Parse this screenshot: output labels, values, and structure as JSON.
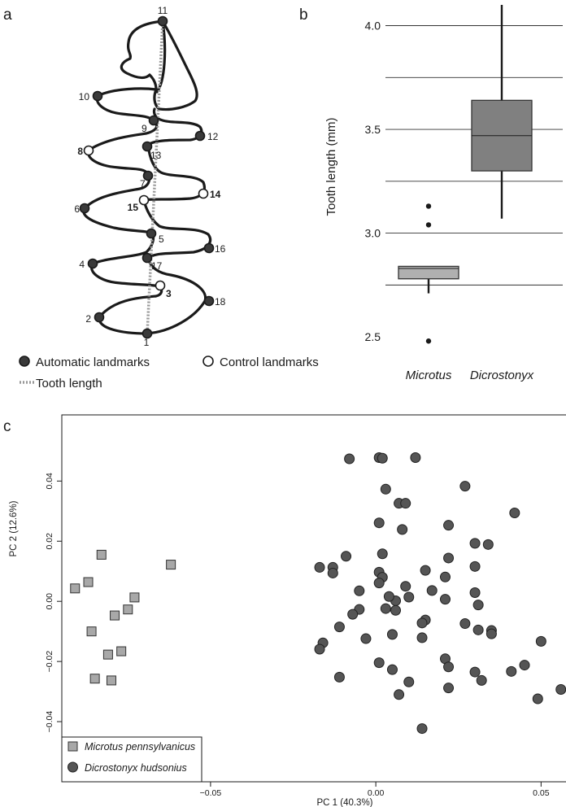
{
  "panels": {
    "a": "a",
    "b": "b",
    "c": "c"
  },
  "panel_a": {
    "landmarks": [
      {
        "id": "1",
        "type": "automatic"
      },
      {
        "id": "2",
        "type": "automatic"
      },
      {
        "id": "3",
        "type": "control"
      },
      {
        "id": "4",
        "type": "automatic"
      },
      {
        "id": "5",
        "type": "automatic"
      },
      {
        "id": "6",
        "type": "automatic"
      },
      {
        "id": "7",
        "type": "automatic"
      },
      {
        "id": "8",
        "type": "control"
      },
      {
        "id": "9",
        "type": "automatic"
      },
      {
        "id": "10",
        "type": "automatic"
      },
      {
        "id": "11",
        "type": "automatic"
      },
      {
        "id": "12",
        "type": "automatic"
      },
      {
        "id": "13",
        "type": "automatic"
      },
      {
        "id": "14",
        "type": "control"
      },
      {
        "id": "15",
        "type": "control"
      },
      {
        "id": "16",
        "type": "automatic"
      },
      {
        "id": "17",
        "type": "automatic"
      },
      {
        "id": "18",
        "type": "automatic"
      }
    ],
    "legend": {
      "automatic": "Automatic landmarks",
      "control": "Control landmarks",
      "tooth_length": "Tooth length"
    },
    "colors": {
      "tooth_outline": "#1a1a1a",
      "automatic_fill": "#3a3a3a",
      "control_fill": "#ffffff",
      "dotted_line": "#999999"
    }
  },
  "chart_data": [
    {
      "type": "box",
      "panel": "b",
      "ylabel": "Tooth length (mm)",
      "ylim": [
        2.43,
        4.1
      ],
      "yticks": [
        2.5,
        3.0,
        3.5,
        4.0
      ],
      "ytick_labels": [
        "2.5",
        "3.0",
        "3.5",
        "4.0"
      ],
      "gridlines": [
        2.75,
        3.0,
        3.25,
        3.5,
        3.75,
        4.0
      ],
      "grid": true,
      "categories": [
        "Microtus",
        "Dicrostonyx"
      ],
      "boxes": [
        {
          "category": "Microtus",
          "q1": 2.78,
          "median": 2.83,
          "q3": 2.84,
          "whisker_low": 2.71,
          "whisker_high": 2.84,
          "outliers": [
            3.13,
            3.04,
            2.48
          ],
          "color": "#b0b0b0"
        },
        {
          "category": "Dicrostonyx",
          "q1": 3.3,
          "median": 3.47,
          "q3": 3.64,
          "whisker_low": 3.07,
          "whisker_high": 4.1,
          "outliers": [],
          "color": "#808080"
        }
      ]
    },
    {
      "type": "scatter",
      "panel": "c",
      "xlabel": "PC  1 (40.3%)",
      "ylabel": "PC  2 (12.6%)",
      "xlim": [
        -0.095,
        0.06
      ],
      "ylim": [
        -0.06,
        0.062
      ],
      "xticks": [
        -0.05,
        0.0,
        0.05
      ],
      "xtick_labels": [
        "−0.05",
        "0.00",
        "0.05"
      ],
      "yticks": [
        -0.04,
        -0.02,
        0.0,
        0.02,
        0.04
      ],
      "ytick_labels": [
        "−0.04",
        "−0.02",
        "0.00",
        "0.02",
        "0.04"
      ],
      "legend_position": "bottom-left",
      "series": [
        {
          "name": "Microtus pennsylvanicus",
          "marker": "square",
          "color": "#a8a8a8",
          "points": [
            [
              -0.083,
              0.0155
            ],
            [
              -0.062,
              0.0122
            ],
            [
              -0.087,
              0.0064
            ],
            [
              -0.091,
              0.0043
            ],
            [
              -0.073,
              0.0013
            ],
            [
              -0.075,
              -0.0027
            ],
            [
              -0.079,
              -0.0047
            ],
            [
              -0.086,
              -0.01
            ],
            [
              -0.077,
              -0.0166
            ],
            [
              -0.081,
              -0.0177
            ],
            [
              -0.085,
              -0.0257
            ],
            [
              -0.08,
              -0.0263
            ]
          ]
        },
        {
          "name": "Dicrostonyx hudsonius",
          "marker": "circle",
          "color": "#555555",
          "points": [
            [
              -0.008,
              0.0474
            ],
            [
              0.001,
              0.0478
            ],
            [
              0.002,
              0.0476
            ],
            [
              0.012,
              0.0478
            ],
            [
              0.003,
              0.0373
            ],
            [
              0.007,
              0.0326
            ],
            [
              0.009,
              0.0326
            ],
            [
              0.027,
              0.0383
            ],
            [
              0.042,
              0.0294
            ],
            [
              0.001,
              0.0261
            ],
            [
              0.008,
              0.0239
            ],
            [
              0.022,
              0.0253
            ],
            [
              -0.017,
              0.0113
            ],
            [
              -0.013,
              0.0113
            ],
            [
              -0.009,
              0.015
            ],
            [
              -0.013,
              0.0094
            ],
            [
              0.002,
              0.0158
            ],
            [
              0.022,
              0.0144
            ],
            [
              0.03,
              0.0193
            ],
            [
              0.034,
              0.0189
            ],
            [
              0.001,
              0.0097
            ],
            [
              0.002,
              0.008
            ],
            [
              0.015,
              0.0103
            ],
            [
              0.021,
              0.0081
            ],
            [
              0.03,
              0.0116
            ],
            [
              -0.005,
              0.0035
            ],
            [
              0.001,
              0.0061
            ],
            [
              0.009,
              0.005
            ],
            [
              0.017,
              0.0036
            ],
            [
              0.006,
              0.0002
            ],
            [
              0.004,
              0.0016
            ],
            [
              0.01,
              0.0014
            ],
            [
              0.021,
              0.0007
            ],
            [
              -0.005,
              -0.0027
            ],
            [
              0.003,
              -0.0024
            ],
            [
              0.006,
              -0.003
            ],
            [
              0.03,
              0.0029
            ],
            [
              0.031,
              -0.0012
            ],
            [
              -0.007,
              -0.0043
            ],
            [
              -0.011,
              -0.0085
            ],
            [
              0.015,
              -0.0062
            ],
            [
              0.014,
              -0.0072
            ],
            [
              0.027,
              -0.0074
            ],
            [
              0.035,
              -0.0097
            ],
            [
              0.035,
              -0.0108
            ],
            [
              0.031,
              -0.0095
            ],
            [
              -0.016,
              -0.0138
            ],
            [
              -0.003,
              -0.0124
            ],
            [
              0.005,
              -0.011
            ],
            [
              0.014,
              -0.0121
            ],
            [
              -0.017,
              -0.0159
            ],
            [
              0.05,
              -0.0133
            ],
            [
              0.001,
              -0.0204
            ],
            [
              0.005,
              -0.0227
            ],
            [
              0.021,
              -0.0191
            ],
            [
              0.022,
              -0.0218
            ],
            [
              0.03,
              -0.0235
            ],
            [
              0.041,
              -0.0233
            ],
            [
              0.045,
              -0.0212
            ],
            [
              -0.011,
              -0.0252
            ],
            [
              0.01,
              -0.0268
            ],
            [
              0.022,
              -0.0288
            ],
            [
              0.032,
              -0.0263
            ],
            [
              0.007,
              -0.031
            ],
            [
              0.049,
              -0.0324
            ],
            [
              0.056,
              -0.0293
            ],
            [
              0.014,
              -0.0423
            ]
          ]
        }
      ]
    }
  ]
}
